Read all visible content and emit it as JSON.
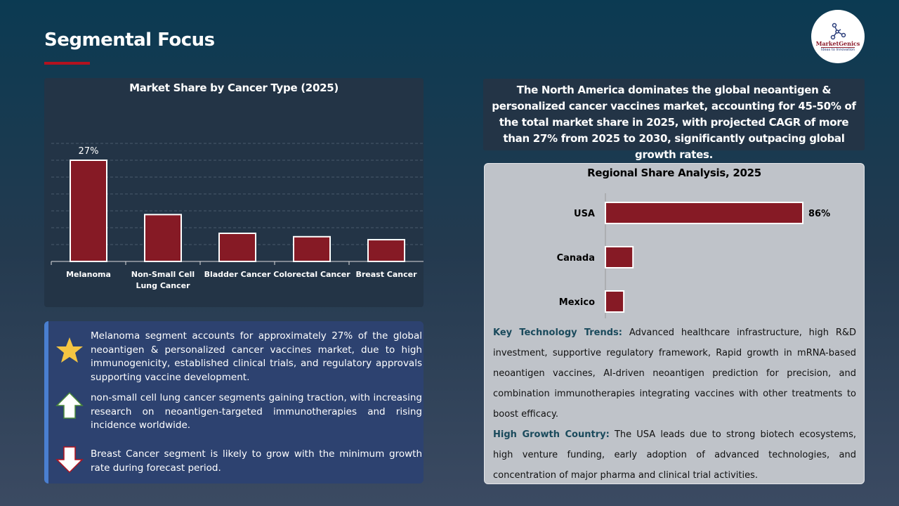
{
  "header": {
    "title": "Segmental Focus",
    "logo_text": "MarketGenics",
    "logo_tagline": "Ideas to Innovation"
  },
  "chart_data": [
    {
      "type": "bar",
      "title": "Market Share by Cancer Type (2025)",
      "categories": [
        "Melanoma",
        "Non-Small Cell Lung Cancer",
        "Bladder Cancer",
        "Colorectal Cancer",
        "Breast Cancer"
      ],
      "values": [
        27,
        12.5,
        7.5,
        6.6,
        5.8
      ],
      "data_labels": [
        "27%",
        "",
        "",
        "",
        ""
      ],
      "ylim": [
        0,
        31.5
      ],
      "grid": true,
      "bar_color": "#861a25"
    },
    {
      "type": "bar",
      "orientation": "horizontal",
      "title": "Regional Share Analysis, 2025",
      "categories": [
        "USA",
        "Canada",
        "Mexico"
      ],
      "values": [
        86,
        12,
        8
      ],
      "data_labels": [
        "86%",
        "",
        ""
      ],
      "xlim": [
        0,
        100
      ],
      "bar_color": "#861a25"
    }
  ],
  "summary": "The North America dominates the global neoantigen & personalized cancer vaccines market, accounting for 45-50% of the total market share in 2025, with projected CAGR of more than 27% from 2025 to 2030, significantly outpacing global growth rates.",
  "trends": {
    "label1": "Key Technology Trends:",
    "text1": " Advanced healthcare infrastructure, high R&D investment, supportive regulatory framework, Rapid growth in mRNA-based neoantigen vaccines, AI-driven neoantigen prediction for precision, and combination immunotherapies integrating vaccines with other treatments to boost efficacy.",
    "label2": "High Growth Country:",
    "text2": " The USA leads due to strong biotech ecosystems, high venture funding, early adoption of advanced technologies, and concentration of major pharma and clinical trial activities."
  },
  "insights": [
    {
      "icon": "star-icon",
      "text": "Melanoma segment accounts for approximately 27% of the global neoantigen & personalized cancer vaccines market, due to high immunogenicity, established clinical trials, and regulatory approvals supporting vaccine development."
    },
    {
      "icon": "arrow-up-icon",
      "text": "non-small cell lung cancer segments gaining traction, with increasing research on neoantigen-targeted immunotherapies and rising incidence worldwide."
    },
    {
      "icon": "arrow-down-icon",
      "text": "Breast Cancer segment is likely to grow with the minimum growth rate during forecast period."
    }
  ]
}
